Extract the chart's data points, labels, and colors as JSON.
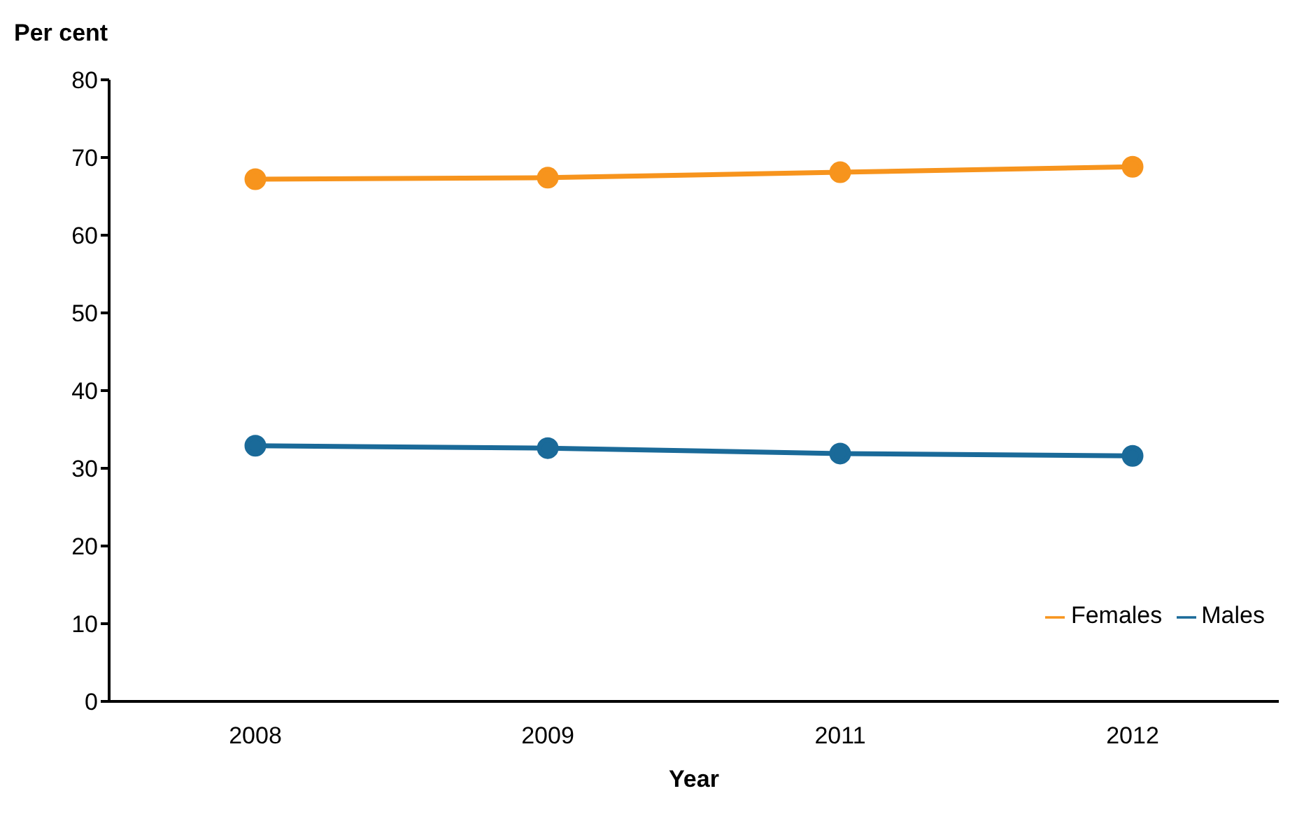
{
  "chart_data": {
    "type": "line",
    "xlabel": "Year",
    "ylabel": "Per cent",
    "categories": [
      "2008",
      "2009",
      "2011",
      "2012"
    ],
    "series": [
      {
        "name": "Males",
        "color": "#1a6a99",
        "values": [
          32.9,
          32.6,
          31.9,
          31.6
        ]
      },
      {
        "name": "Females",
        "color": "#f7941d",
        "values": [
          67.2,
          67.4,
          68.1,
          68.8
        ]
      }
    ],
    "ylim": [
      0,
      80
    ],
    "yticks": [
      0,
      10,
      20,
      30,
      40,
      50,
      60,
      70,
      80
    ],
    "grid": false,
    "legend": "bottom right",
    "marker": "circle",
    "line_style": "solid"
  }
}
